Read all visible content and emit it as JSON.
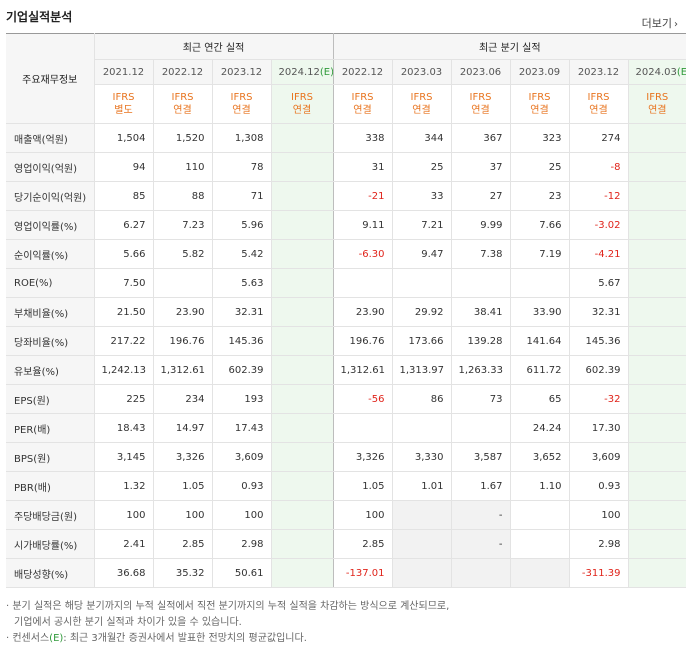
{
  "title": "기업실적분석",
  "more_label": "더보기",
  "header": {
    "corner_label": "주요재무정보",
    "annual_group": "최근 연간 실적",
    "quarter_group": "최근 분기 실적",
    "annual_periods": [
      {
        "period": "2021.12",
        "est": "",
        "std": "IFRS",
        "basis": "별도"
      },
      {
        "period": "2022.12",
        "est": "",
        "std": "IFRS",
        "basis": "연결"
      },
      {
        "period": "2023.12",
        "est": "",
        "std": "IFRS",
        "basis": "연결"
      },
      {
        "period": "2024.12",
        "est": "(E)",
        "std": "IFRS",
        "basis": "연결"
      }
    ],
    "quarter_periods": [
      {
        "period": "2022.12",
        "est": "",
        "std": "IFRS",
        "basis": "연결"
      },
      {
        "period": "2023.03",
        "est": "",
        "std": "IFRS",
        "basis": "연결"
      },
      {
        "period": "2023.06",
        "est": "",
        "std": "IFRS",
        "basis": "연결"
      },
      {
        "period": "2023.09",
        "est": "",
        "std": "IFRS",
        "basis": "연결"
      },
      {
        "period": "2023.12",
        "est": "",
        "std": "IFRS",
        "basis": "연결"
      },
      {
        "period": "2024.03",
        "est": "(E)",
        "std": "IFRS",
        "basis": "연결"
      }
    ]
  },
  "rows": [
    {
      "label": "매출액(억원)",
      "annual": [
        "1,504",
        "1,520",
        "1,308",
        ""
      ],
      "quarter": [
        "338",
        "344",
        "367",
        "323",
        "274",
        ""
      ]
    },
    {
      "label": "영업이익(억원)",
      "annual": [
        "94",
        "110",
        "78",
        ""
      ],
      "quarter": [
        "31",
        "25",
        "37",
        "25",
        "-8",
        ""
      ]
    },
    {
      "label": "당기순이익(억원)",
      "annual": [
        "85",
        "88",
        "71",
        ""
      ],
      "quarter": [
        "-21",
        "33",
        "27",
        "23",
        "-12",
        ""
      ]
    },
    {
      "label": "영업이익률(%)",
      "annual": [
        "6.27",
        "7.23",
        "5.96",
        ""
      ],
      "quarter": [
        "9.11",
        "7.21",
        "9.99",
        "7.66",
        "-3.02",
        ""
      ]
    },
    {
      "label": "순이익률(%)",
      "annual": [
        "5.66",
        "5.82",
        "5.42",
        ""
      ],
      "quarter": [
        "-6.30",
        "9.47",
        "7.38",
        "7.19",
        "-4.21",
        ""
      ]
    },
    {
      "label": "ROE(%)",
      "annual": [
        "7.50",
        "",
        "5.63",
        ""
      ],
      "quarter": [
        "",
        "",
        "",
        "",
        "5.67",
        ""
      ]
    },
    {
      "label": "부채비율(%)",
      "annual": [
        "21.50",
        "23.90",
        "32.31",
        ""
      ],
      "quarter": [
        "23.90",
        "29.92",
        "38.41",
        "33.90",
        "32.31",
        ""
      ]
    },
    {
      "label": "당좌비율(%)",
      "annual": [
        "217.22",
        "196.76",
        "145.36",
        ""
      ],
      "quarter": [
        "196.76",
        "173.66",
        "139.28",
        "141.64",
        "145.36",
        ""
      ]
    },
    {
      "label": "유보율(%)",
      "annual": [
        "1,242.13",
        "1,312.61",
        "602.39",
        ""
      ],
      "quarter": [
        "1,312.61",
        "1,313.97",
        "1,263.33",
        "611.72",
        "602.39",
        ""
      ]
    },
    {
      "label": "EPS(원)",
      "annual": [
        "225",
        "234",
        "193",
        ""
      ],
      "quarter": [
        "-56",
        "86",
        "73",
        "65",
        "-32",
        ""
      ]
    },
    {
      "label": "PER(배)",
      "annual": [
        "18.43",
        "14.97",
        "17.43",
        ""
      ],
      "quarter": [
        "",
        "",
        "",
        "24.24",
        "17.30",
        ""
      ]
    },
    {
      "label": "BPS(원)",
      "annual": [
        "3,145",
        "3,326",
        "3,609",
        ""
      ],
      "quarter": [
        "3,326",
        "3,330",
        "3,587",
        "3,652",
        "3,609",
        ""
      ]
    },
    {
      "label": "PBR(배)",
      "annual": [
        "1.32",
        "1.05",
        "0.93",
        ""
      ],
      "quarter": [
        "1.05",
        "1.01",
        "1.67",
        "1.10",
        "0.93",
        ""
      ]
    },
    {
      "label": "주당배당금(원)",
      "annual": [
        "100",
        "100",
        "100",
        ""
      ],
      "quarter": [
        "100",
        "",
        "-",
        "",
        "100",
        ""
      ]
    },
    {
      "label": "시가배당률(%)",
      "annual": [
        "2.41",
        "2.85",
        "2.98",
        ""
      ],
      "quarter": [
        "2.85",
        "",
        "-",
        "",
        "2.98",
        ""
      ]
    },
    {
      "label": "배당성향(%)",
      "annual": [
        "36.68",
        "35.32",
        "50.61",
        ""
      ],
      "quarter": [
        "-137.01",
        "",
        "",
        "",
        "-311.39",
        ""
      ]
    }
  ],
  "notes": {
    "line1": "분기 실적은 해당 분기까지의 누적 실적에서 직전 분기까지의 누적 실적을 차감하는 방식으로 계산되므로,",
    "line2": "기업에서 공시한 분기 실적과 차이가 있을 수 있습니다.",
    "line3_prefix": "컨센서스",
    "line3_e": "(E)",
    "line3_suffix": ": 최근 3개월간 증권사에서 발표한 전망치의 평균값입니다."
  },
  "colors": {
    "negative": "#e0241b",
    "ifrs_label": "#e8741f",
    "estimate_bg": "#eef8ee",
    "estimate_marker": "#2f9a3a"
  }
}
